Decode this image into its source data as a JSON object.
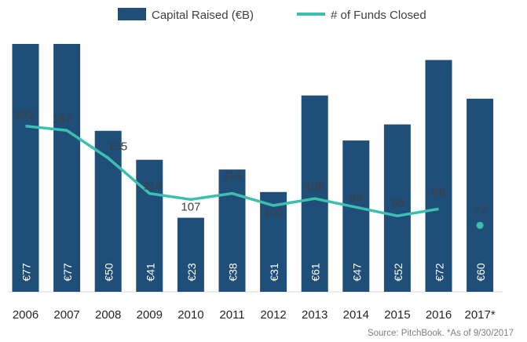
{
  "chart_data": {
    "type": "bar",
    "categories": [
      "2006",
      "2007",
      "2008",
      "2009",
      "2010",
      "2011",
      "2012",
      "2013",
      "2014",
      "2015",
      "2016",
      "2017*"
    ],
    "series": [
      {
        "name": "Capital Raised (€B)",
        "type": "bar",
        "values": [
          77,
          77,
          50,
          41,
          23,
          38,
          31,
          61,
          47,
          52,
          72,
          60
        ],
        "labels": [
          "€77",
          "€77",
          "€50",
          "€41",
          "€23",
          "€38",
          "€31",
          "€61",
          "€47",
          "€52",
          "€72",
          "€60"
        ],
        "color": "#1f4e79"
      },
      {
        "name": "# of Funds Closed",
        "type": "line",
        "values": [
          192,
          187,
          155,
          114,
          107,
          114,
          100,
          108,
          98,
          88,
          96,
          77
        ],
        "color": "#3dbfae"
      }
    ],
    "bar_ylim": [
      0,
      80
    ],
    "line_ylim": [
      0,
      245
    ],
    "line_connected_through": "2016",
    "legend_position": "top",
    "grid": false
  },
  "source_note": "Source: PitchBook. *As of 9/30/2017",
  "colors": {
    "bar": "#1f4e79",
    "line": "#3dbfae",
    "text": "#404040"
  }
}
